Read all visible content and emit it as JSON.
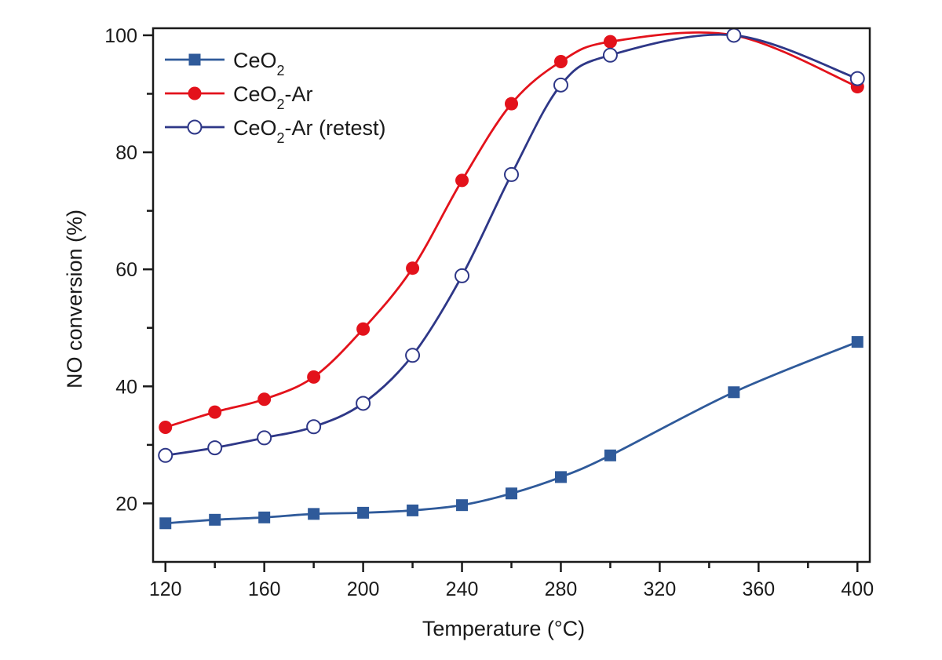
{
  "chart_data": {
    "type": "line",
    "title": "",
    "xlabel": "Temperature (°C)",
    "ylabel": "NO conversion (%)",
    "xlim": [
      115,
      405
    ],
    "ylim": [
      10,
      101.2
    ],
    "xticks": [
      120,
      160,
      200,
      240,
      280,
      320,
      360,
      400
    ],
    "xticks_minor": [
      140,
      180,
      220,
      260,
      300,
      340,
      380
    ],
    "yticks": [
      20,
      40,
      60,
      80,
      100
    ],
    "yticks_minor": [
      30,
      50,
      70,
      90
    ],
    "grid": false,
    "legend_position": "top-left",
    "x": [
      120,
      140,
      160,
      180,
      200,
      220,
      240,
      260,
      280,
      300,
      350,
      400
    ],
    "series": [
      {
        "name": "CeO2",
        "label_main": "CeO",
        "label_sub": "2",
        "label_suffix": "",
        "marker": "square",
        "filled": true,
        "color": "#2f5a9a",
        "values": [
          16.6,
          17.2,
          17.6,
          18.2,
          18.4,
          18.8,
          19.7,
          21.7,
          24.5,
          28.2,
          39.0,
          47.6
        ]
      },
      {
        "name": "CeO2-Ar",
        "label_main": "CeO",
        "label_sub": "2",
        "label_suffix": "-Ar",
        "marker": "circle",
        "filled": true,
        "color": "#e3121b",
        "values": [
          33.0,
          35.6,
          37.8,
          41.6,
          49.8,
          60.2,
          75.2,
          88.3,
          95.5,
          98.9,
          100.0,
          91.2
        ]
      },
      {
        "name": "CeO2-Ar (retest)",
        "label_main": "CeO",
        "label_sub": "2",
        "label_suffix": "-Ar (retest)",
        "marker": "circle",
        "filled": false,
        "color": "#2e3787",
        "values": [
          28.2,
          29.5,
          31.2,
          33.1,
          37.1,
          45.3,
          58.9,
          76.2,
          91.5,
          96.6,
          100.0,
          92.6
        ]
      }
    ]
  }
}
